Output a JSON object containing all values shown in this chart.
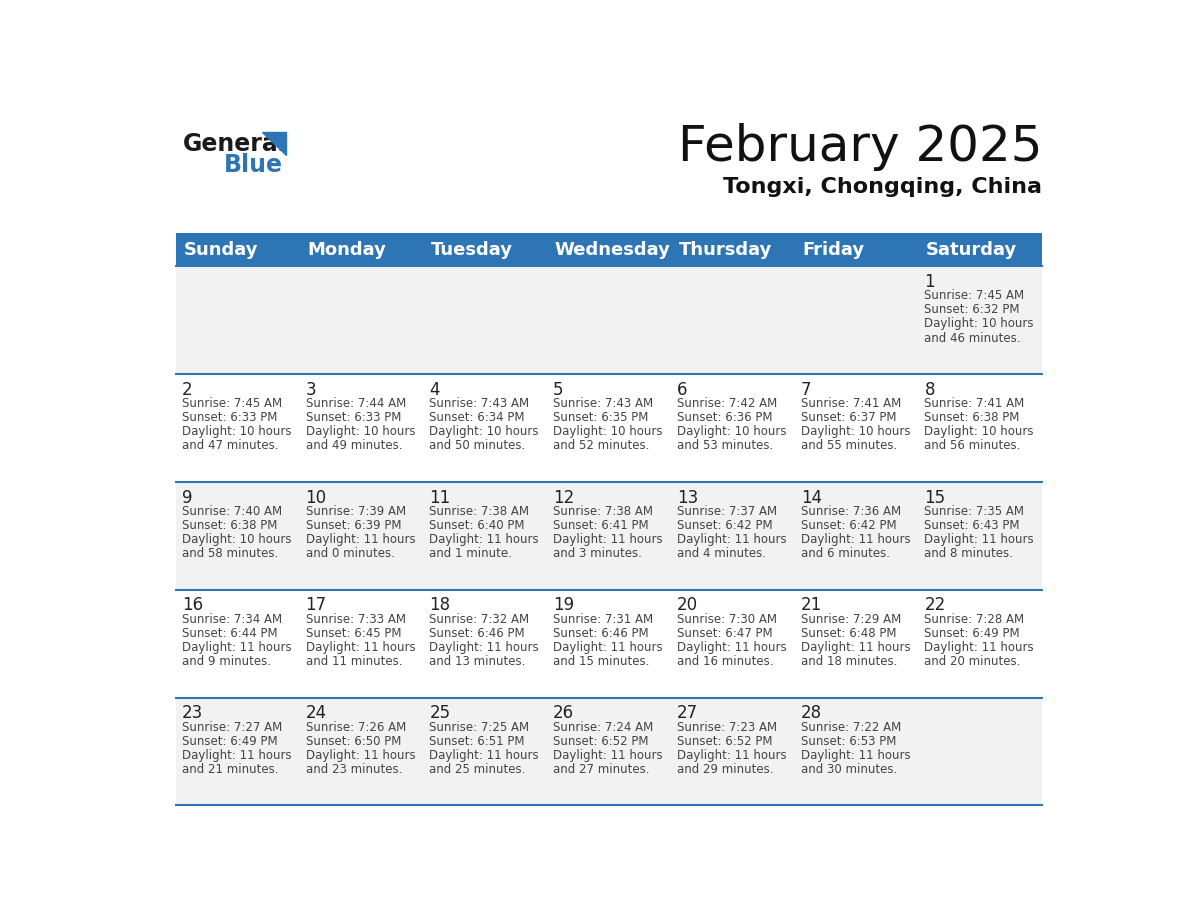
{
  "title": "February 2025",
  "subtitle": "Tongxi, Chongqing, China",
  "header_color": "#2E75B6",
  "header_text_color": "#FFFFFF",
  "background_color": "#FFFFFF",
  "cell_bg_row0": "#F2F2F2",
  "cell_bg_row1": "#FFFFFF",
  "cell_bg_row2": "#F2F2F2",
  "cell_bg_row3": "#FFFFFF",
  "cell_bg_row4": "#F2F2F2",
  "day_names": [
    "Sunday",
    "Monday",
    "Tuesday",
    "Wednesday",
    "Thursday",
    "Friday",
    "Saturday"
  ],
  "title_fontsize": 36,
  "subtitle_fontsize": 16,
  "header_fontsize": 13,
  "day_num_fontsize": 12,
  "cell_fontsize": 8.5,
  "days": [
    {
      "day": 1,
      "col": 6,
      "row": 0,
      "sunrise": "7:45 AM",
      "sunset": "6:32 PM",
      "daylight_line1": "Daylight: 10 hours",
      "daylight_line2": "and 46 minutes."
    },
    {
      "day": 2,
      "col": 0,
      "row": 1,
      "sunrise": "7:45 AM",
      "sunset": "6:33 PM",
      "daylight_line1": "Daylight: 10 hours",
      "daylight_line2": "and 47 minutes."
    },
    {
      "day": 3,
      "col": 1,
      "row": 1,
      "sunrise": "7:44 AM",
      "sunset": "6:33 PM",
      "daylight_line1": "Daylight: 10 hours",
      "daylight_line2": "and 49 minutes."
    },
    {
      "day": 4,
      "col": 2,
      "row": 1,
      "sunrise": "7:43 AM",
      "sunset": "6:34 PM",
      "daylight_line1": "Daylight: 10 hours",
      "daylight_line2": "and 50 minutes."
    },
    {
      "day": 5,
      "col": 3,
      "row": 1,
      "sunrise": "7:43 AM",
      "sunset": "6:35 PM",
      "daylight_line1": "Daylight: 10 hours",
      "daylight_line2": "and 52 minutes."
    },
    {
      "day": 6,
      "col": 4,
      "row": 1,
      "sunrise": "7:42 AM",
      "sunset": "6:36 PM",
      "daylight_line1": "Daylight: 10 hours",
      "daylight_line2": "and 53 minutes."
    },
    {
      "day": 7,
      "col": 5,
      "row": 1,
      "sunrise": "7:41 AM",
      "sunset": "6:37 PM",
      "daylight_line1": "Daylight: 10 hours",
      "daylight_line2": "and 55 minutes."
    },
    {
      "day": 8,
      "col": 6,
      "row": 1,
      "sunrise": "7:41 AM",
      "sunset": "6:38 PM",
      "daylight_line1": "Daylight: 10 hours",
      "daylight_line2": "and 56 minutes."
    },
    {
      "day": 9,
      "col": 0,
      "row": 2,
      "sunrise": "7:40 AM",
      "sunset": "6:38 PM",
      "daylight_line1": "Daylight: 10 hours",
      "daylight_line2": "and 58 minutes."
    },
    {
      "day": 10,
      "col": 1,
      "row": 2,
      "sunrise": "7:39 AM",
      "sunset": "6:39 PM",
      "daylight_line1": "Daylight: 11 hours",
      "daylight_line2": "and 0 minutes."
    },
    {
      "day": 11,
      "col": 2,
      "row": 2,
      "sunrise": "7:38 AM",
      "sunset": "6:40 PM",
      "daylight_line1": "Daylight: 11 hours",
      "daylight_line2": "and 1 minute."
    },
    {
      "day": 12,
      "col": 3,
      "row": 2,
      "sunrise": "7:38 AM",
      "sunset": "6:41 PM",
      "daylight_line1": "Daylight: 11 hours",
      "daylight_line2": "and 3 minutes."
    },
    {
      "day": 13,
      "col": 4,
      "row": 2,
      "sunrise": "7:37 AM",
      "sunset": "6:42 PM",
      "daylight_line1": "Daylight: 11 hours",
      "daylight_line2": "and 4 minutes."
    },
    {
      "day": 14,
      "col": 5,
      "row": 2,
      "sunrise": "7:36 AM",
      "sunset": "6:42 PM",
      "daylight_line1": "Daylight: 11 hours",
      "daylight_line2": "and 6 minutes."
    },
    {
      "day": 15,
      "col": 6,
      "row": 2,
      "sunrise": "7:35 AM",
      "sunset": "6:43 PM",
      "daylight_line1": "Daylight: 11 hours",
      "daylight_line2": "and 8 minutes."
    },
    {
      "day": 16,
      "col": 0,
      "row": 3,
      "sunrise": "7:34 AM",
      "sunset": "6:44 PM",
      "daylight_line1": "Daylight: 11 hours",
      "daylight_line2": "and 9 minutes."
    },
    {
      "day": 17,
      "col": 1,
      "row": 3,
      "sunrise": "7:33 AM",
      "sunset": "6:45 PM",
      "daylight_line1": "Daylight: 11 hours",
      "daylight_line2": "and 11 minutes."
    },
    {
      "day": 18,
      "col": 2,
      "row": 3,
      "sunrise": "7:32 AM",
      "sunset": "6:46 PM",
      "daylight_line1": "Daylight: 11 hours",
      "daylight_line2": "and 13 minutes."
    },
    {
      "day": 19,
      "col": 3,
      "row": 3,
      "sunrise": "7:31 AM",
      "sunset": "6:46 PM",
      "daylight_line1": "Daylight: 11 hours",
      "daylight_line2": "and 15 minutes."
    },
    {
      "day": 20,
      "col": 4,
      "row": 3,
      "sunrise": "7:30 AM",
      "sunset": "6:47 PM",
      "daylight_line1": "Daylight: 11 hours",
      "daylight_line2": "and 16 minutes."
    },
    {
      "day": 21,
      "col": 5,
      "row": 3,
      "sunrise": "7:29 AM",
      "sunset": "6:48 PM",
      "daylight_line1": "Daylight: 11 hours",
      "daylight_line2": "and 18 minutes."
    },
    {
      "day": 22,
      "col": 6,
      "row": 3,
      "sunrise": "7:28 AM",
      "sunset": "6:49 PM",
      "daylight_line1": "Daylight: 11 hours",
      "daylight_line2": "and 20 minutes."
    },
    {
      "day": 23,
      "col": 0,
      "row": 4,
      "sunrise": "7:27 AM",
      "sunset": "6:49 PM",
      "daylight_line1": "Daylight: 11 hours",
      "daylight_line2": "and 21 minutes."
    },
    {
      "day": 24,
      "col": 1,
      "row": 4,
      "sunrise": "7:26 AM",
      "sunset": "6:50 PM",
      "daylight_line1": "Daylight: 11 hours",
      "daylight_line2": "and 23 minutes."
    },
    {
      "day": 25,
      "col": 2,
      "row": 4,
      "sunrise": "7:25 AM",
      "sunset": "6:51 PM",
      "daylight_line1": "Daylight: 11 hours",
      "daylight_line2": "and 25 minutes."
    },
    {
      "day": 26,
      "col": 3,
      "row": 4,
      "sunrise": "7:24 AM",
      "sunset": "6:52 PM",
      "daylight_line1": "Daylight: 11 hours",
      "daylight_line2": "and 27 minutes."
    },
    {
      "day": 27,
      "col": 4,
      "row": 4,
      "sunrise": "7:23 AM",
      "sunset": "6:52 PM",
      "daylight_line1": "Daylight: 11 hours",
      "daylight_line2": "and 29 minutes."
    },
    {
      "day": 28,
      "col": 5,
      "row": 4,
      "sunrise": "7:22 AM",
      "sunset": "6:53 PM",
      "daylight_line1": "Daylight: 11 hours",
      "daylight_line2": "and 30 minutes."
    }
  ],
  "logo_general_color": "#1a1a1a",
  "logo_blue_color": "#2E75B6",
  "num_rows": 5,
  "line_color": "#2E75B6",
  "cell_row_colors": [
    "#F2F2F2",
    "#FFFFFF",
    "#F2F2F2",
    "#FFFFFF",
    "#F2F2F2"
  ]
}
